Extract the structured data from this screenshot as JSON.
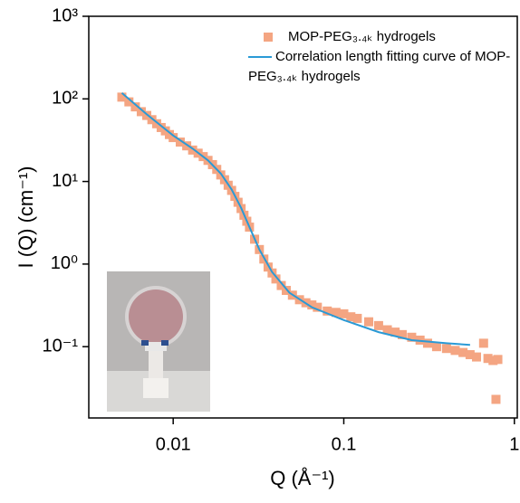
{
  "chart_data": {
    "type": "scatter",
    "x_label": "Q (Å⁻¹)",
    "y_label": "I (Q) (cm⁻¹)",
    "xscale": "log",
    "yscale": "log",
    "xlim": [
      0.0032,
      1.04
    ],
    "ylim": [
      0.0137,
      1000
    ],
    "xticks": [
      0.01,
      0.1,
      1
    ],
    "yticks": [
      {
        "value": 1000,
        "label": "10³"
      },
      {
        "value": 100,
        "label": "10²"
      },
      {
        "value": 10,
        "label": "10¹"
      },
      {
        "value": 1,
        "label": "10⁰"
      },
      {
        "value": 0.1,
        "label": "10⁻¹"
      }
    ],
    "legend": "top-right",
    "series": [
      {
        "name": "MOP-PEG₃.₄ₖ hydrogels",
        "kind": "scatter",
        "color": "#f4a582",
        "x": [
          0.005,
          0.0055,
          0.006,
          0.0065,
          0.007,
          0.0075,
          0.008,
          0.0085,
          0.009,
          0.0095,
          0.01,
          0.011,
          0.012,
          0.013,
          0.014,
          0.015,
          0.016,
          0.017,
          0.018,
          0.019,
          0.02,
          0.021,
          0.022,
          0.023,
          0.024,
          0.025,
          0.026,
          0.027,
          0.028,
          0.03,
          0.032,
          0.034,
          0.036,
          0.038,
          0.04,
          0.043,
          0.046,
          0.05,
          0.055,
          0.06,
          0.065,
          0.07,
          0.08,
          0.09,
          0.1,
          0.11,
          0.12,
          0.14,
          0.16,
          0.18,
          0.2,
          0.22,
          0.25,
          0.28,
          0.31,
          0.35,
          0.4,
          0.45,
          0.5,
          0.55,
          0.6,
          0.66,
          0.7,
          0.75,
          0.78,
          0.8
        ],
        "values": [
          105,
          92,
          80,
          70,
          63,
          56,
          50,
          45,
          41,
          37,
          34,
          30,
          27,
          24,
          22,
          20,
          18,
          16,
          14,
          12,
          10.5,
          9,
          7.8,
          6.6,
          5.6,
          4.7,
          3.9,
          3.3,
          2.8,
          2.0,
          1.5,
          1.15,
          0.92,
          0.78,
          0.66,
          0.55,
          0.48,
          0.42,
          0.37,
          0.34,
          0.32,
          0.3,
          0.27,
          0.26,
          0.25,
          0.23,
          0.22,
          0.2,
          0.18,
          0.16,
          0.15,
          0.14,
          0.13,
          0.12,
          0.11,
          0.1,
          0.095,
          0.09,
          0.085,
          0.08,
          0.075,
          0.11,
          0.072,
          0.068,
          0.023,
          0.07
        ]
      },
      {
        "name": "Correlation length fitting curve of MOP-PEG₃.₄ₖ hydrogels",
        "kind": "line",
        "color": "#2a9ad6",
        "x": [
          0.005,
          0.007,
          0.01,
          0.013,
          0.016,
          0.019,
          0.022,
          0.025,
          0.028,
          0.032,
          0.038,
          0.048,
          0.065,
          0.1,
          0.16,
          0.25,
          0.4,
          0.55
        ],
        "values": [
          118,
          65,
          36,
          25,
          18,
          12.5,
          8,
          4.8,
          2.8,
          1.5,
          0.8,
          0.45,
          0.3,
          0.21,
          0.15,
          0.12,
          0.11,
          0.105
        ]
      }
    ]
  }
}
